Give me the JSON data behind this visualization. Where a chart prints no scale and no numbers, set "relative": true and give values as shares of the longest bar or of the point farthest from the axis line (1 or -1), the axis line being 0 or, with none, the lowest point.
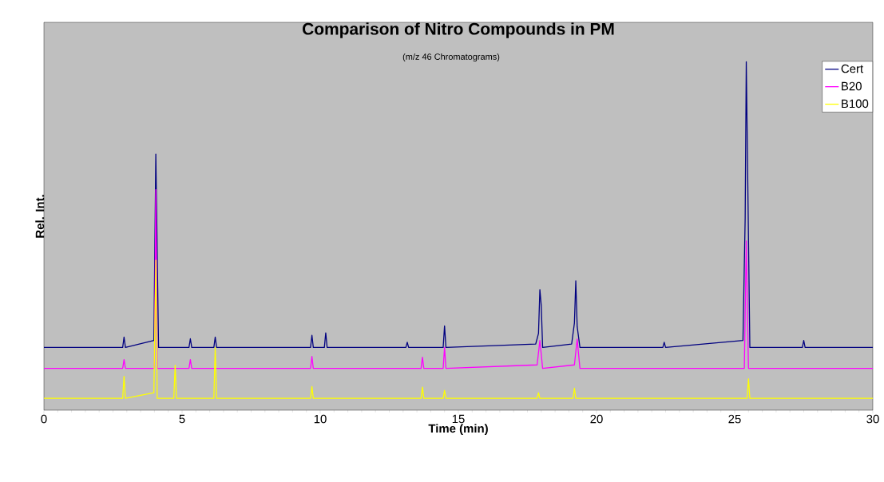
{
  "chart_data": {
    "type": "line",
    "title": "Comparison of Nitro Compounds in PM",
    "subtitle": "(m/z 46 Chromatograms)",
    "xlabel": "Time (min)",
    "ylabel": "Rel. Int.",
    "relative": true,
    "xlim": [
      0,
      30
    ],
    "xticks": [
      0,
      5,
      10,
      15,
      20,
      25,
      30
    ],
    "legend": "top right",
    "series": [
      {
        "name": "Cert",
        "color": "#000080",
        "x": [
          0,
          2.85,
          2.9,
          2.95,
          3.98,
          4.05,
          4.15,
          5.25,
          5.3,
          5.35,
          6.15,
          6.2,
          6.25,
          9.65,
          9.7,
          9.75,
          10.15,
          10.2,
          10.25,
          13.1,
          13.15,
          13.2,
          14.45,
          14.5,
          14.55,
          17.8,
          17.9,
          17.95,
          18.0,
          18.05,
          19.1,
          19.2,
          19.25,
          19.3,
          19.4,
          22.4,
          22.45,
          22.5,
          25.3,
          25.38,
          25.42,
          25.55,
          27.45,
          27.5,
          27.55,
          30
        ],
        "values": [
          0.18,
          0.18,
          0.21,
          0.18,
          0.2,
          0.735,
          0.18,
          0.18,
          0.205,
          0.18,
          0.18,
          0.21,
          0.18,
          0.18,
          0.215,
          0.18,
          0.18,
          0.222,
          0.18,
          0.18,
          0.195,
          0.18,
          0.18,
          0.242,
          0.18,
          0.19,
          0.22,
          0.346,
          0.3,
          0.18,
          0.19,
          0.25,
          0.371,
          0.24,
          0.18,
          0.18,
          0.195,
          0.18,
          0.2,
          0.55,
          1.0,
          0.18,
          0.18,
          0.2,
          0.18,
          0.18
        ]
      },
      {
        "name": "B20",
        "color": "#ff00ff",
        "x": [
          0,
          2.85,
          2.9,
          2.95,
          4.0,
          4.05,
          4.1,
          5.25,
          5.3,
          5.35,
          6.15,
          6.2,
          6.25,
          9.65,
          9.7,
          9.75,
          13.65,
          13.7,
          13.75,
          14.45,
          14.5,
          14.55,
          17.85,
          17.95,
          18.05,
          19.2,
          19.3,
          19.4,
          25.35,
          25.42,
          25.5,
          30
        ],
        "values": [
          0.12,
          0.12,
          0.145,
          0.12,
          0.12,
          0.633,
          0.12,
          0.12,
          0.145,
          0.12,
          0.12,
          null,
          0.12,
          0.12,
          0.154,
          0.12,
          0.12,
          0.152,
          0.12,
          0.12,
          0.18,
          0.12,
          0.13,
          0.2,
          0.12,
          0.13,
          0.204,
          0.12,
          0.12,
          0.486,
          0.12,
          0.12
        ]
      },
      {
        "name": "B100",
        "color": "#ffff00",
        "x": [
          0,
          2.85,
          2.9,
          2.95,
          3.98,
          4.05,
          4.1,
          4.7,
          4.75,
          4.8,
          6.15,
          6.2,
          6.25,
          9.65,
          9.7,
          9.75,
          13.65,
          13.7,
          13.75,
          14.45,
          14.5,
          14.55,
          17.85,
          17.9,
          17.95,
          19.15,
          19.2,
          19.25,
          25.45,
          25.5,
          25.55,
          30
        ],
        "values": [
          0.034,
          0.034,
          0.097,
          0.034,
          0.05,
          0.43,
          0.034,
          0.034,
          0.129,
          0.034,
          0.034,
          0.18,
          0.034,
          0.034,
          0.068,
          0.034,
          0.034,
          0.066,
          0.034,
          0.034,
          0.057,
          0.034,
          0.034,
          0.05,
          0.034,
          0.034,
          0.063,
          0.034,
          0.034,
          0.09,
          0.034,
          0.034
        ]
      }
    ]
  }
}
